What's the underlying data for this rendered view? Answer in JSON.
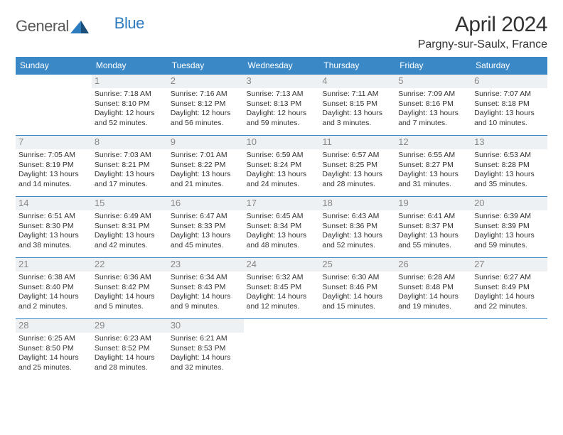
{
  "brand": {
    "part1": "General",
    "part2": "Blue"
  },
  "title": "April 2024",
  "location": "Pargny-sur-Saulx, France",
  "colors": {
    "header_bg": "#3b88c7",
    "header_fg": "#ffffff",
    "rule": "#3b88c7",
    "daynum_bg": "#eef1f3",
    "daynum_fg": "#888888",
    "text": "#333333",
    "brand_gray": "#5a5a5a",
    "brand_blue": "#2e7cc0"
  },
  "weekdays": [
    "Sunday",
    "Monday",
    "Tuesday",
    "Wednesday",
    "Thursday",
    "Friday",
    "Saturday"
  ],
  "grid": {
    "first_weekday_index": 1,
    "days": [
      {
        "n": 1,
        "sunrise": "7:18 AM",
        "sunset": "8:10 PM",
        "daylight": "12 hours and 52 minutes."
      },
      {
        "n": 2,
        "sunrise": "7:16 AM",
        "sunset": "8:12 PM",
        "daylight": "12 hours and 56 minutes."
      },
      {
        "n": 3,
        "sunrise": "7:13 AM",
        "sunset": "8:13 PM",
        "daylight": "12 hours and 59 minutes."
      },
      {
        "n": 4,
        "sunrise": "7:11 AM",
        "sunset": "8:15 PM",
        "daylight": "13 hours and 3 minutes."
      },
      {
        "n": 5,
        "sunrise": "7:09 AM",
        "sunset": "8:16 PM",
        "daylight": "13 hours and 7 minutes."
      },
      {
        "n": 6,
        "sunrise": "7:07 AM",
        "sunset": "8:18 PM",
        "daylight": "13 hours and 10 minutes."
      },
      {
        "n": 7,
        "sunrise": "7:05 AM",
        "sunset": "8:19 PM",
        "daylight": "13 hours and 14 minutes."
      },
      {
        "n": 8,
        "sunrise": "7:03 AM",
        "sunset": "8:21 PM",
        "daylight": "13 hours and 17 minutes."
      },
      {
        "n": 9,
        "sunrise": "7:01 AM",
        "sunset": "8:22 PM",
        "daylight": "13 hours and 21 minutes."
      },
      {
        "n": 10,
        "sunrise": "6:59 AM",
        "sunset": "8:24 PM",
        "daylight": "13 hours and 24 minutes."
      },
      {
        "n": 11,
        "sunrise": "6:57 AM",
        "sunset": "8:25 PM",
        "daylight": "13 hours and 28 minutes."
      },
      {
        "n": 12,
        "sunrise": "6:55 AM",
        "sunset": "8:27 PM",
        "daylight": "13 hours and 31 minutes."
      },
      {
        "n": 13,
        "sunrise": "6:53 AM",
        "sunset": "8:28 PM",
        "daylight": "13 hours and 35 minutes."
      },
      {
        "n": 14,
        "sunrise": "6:51 AM",
        "sunset": "8:30 PM",
        "daylight": "13 hours and 38 minutes."
      },
      {
        "n": 15,
        "sunrise": "6:49 AM",
        "sunset": "8:31 PM",
        "daylight": "13 hours and 42 minutes."
      },
      {
        "n": 16,
        "sunrise": "6:47 AM",
        "sunset": "8:33 PM",
        "daylight": "13 hours and 45 minutes."
      },
      {
        "n": 17,
        "sunrise": "6:45 AM",
        "sunset": "8:34 PM",
        "daylight": "13 hours and 48 minutes."
      },
      {
        "n": 18,
        "sunrise": "6:43 AM",
        "sunset": "8:36 PM",
        "daylight": "13 hours and 52 minutes."
      },
      {
        "n": 19,
        "sunrise": "6:41 AM",
        "sunset": "8:37 PM",
        "daylight": "13 hours and 55 minutes."
      },
      {
        "n": 20,
        "sunrise": "6:39 AM",
        "sunset": "8:39 PM",
        "daylight": "13 hours and 59 minutes."
      },
      {
        "n": 21,
        "sunrise": "6:38 AM",
        "sunset": "8:40 PM",
        "daylight": "14 hours and 2 minutes."
      },
      {
        "n": 22,
        "sunrise": "6:36 AM",
        "sunset": "8:42 PM",
        "daylight": "14 hours and 5 minutes."
      },
      {
        "n": 23,
        "sunrise": "6:34 AM",
        "sunset": "8:43 PM",
        "daylight": "14 hours and 9 minutes."
      },
      {
        "n": 24,
        "sunrise": "6:32 AM",
        "sunset": "8:45 PM",
        "daylight": "14 hours and 12 minutes."
      },
      {
        "n": 25,
        "sunrise": "6:30 AM",
        "sunset": "8:46 PM",
        "daylight": "14 hours and 15 minutes."
      },
      {
        "n": 26,
        "sunrise": "6:28 AM",
        "sunset": "8:48 PM",
        "daylight": "14 hours and 19 minutes."
      },
      {
        "n": 27,
        "sunrise": "6:27 AM",
        "sunset": "8:49 PM",
        "daylight": "14 hours and 22 minutes."
      },
      {
        "n": 28,
        "sunrise": "6:25 AM",
        "sunset": "8:50 PM",
        "daylight": "14 hours and 25 minutes."
      },
      {
        "n": 29,
        "sunrise": "6:23 AM",
        "sunset": "8:52 PM",
        "daylight": "14 hours and 28 minutes."
      },
      {
        "n": 30,
        "sunrise": "6:21 AM",
        "sunset": "8:53 PM",
        "daylight": "14 hours and 32 minutes."
      }
    ]
  },
  "labels": {
    "sunrise_prefix": "Sunrise: ",
    "sunset_prefix": "Sunset: ",
    "daylight_prefix": "Daylight: "
  }
}
